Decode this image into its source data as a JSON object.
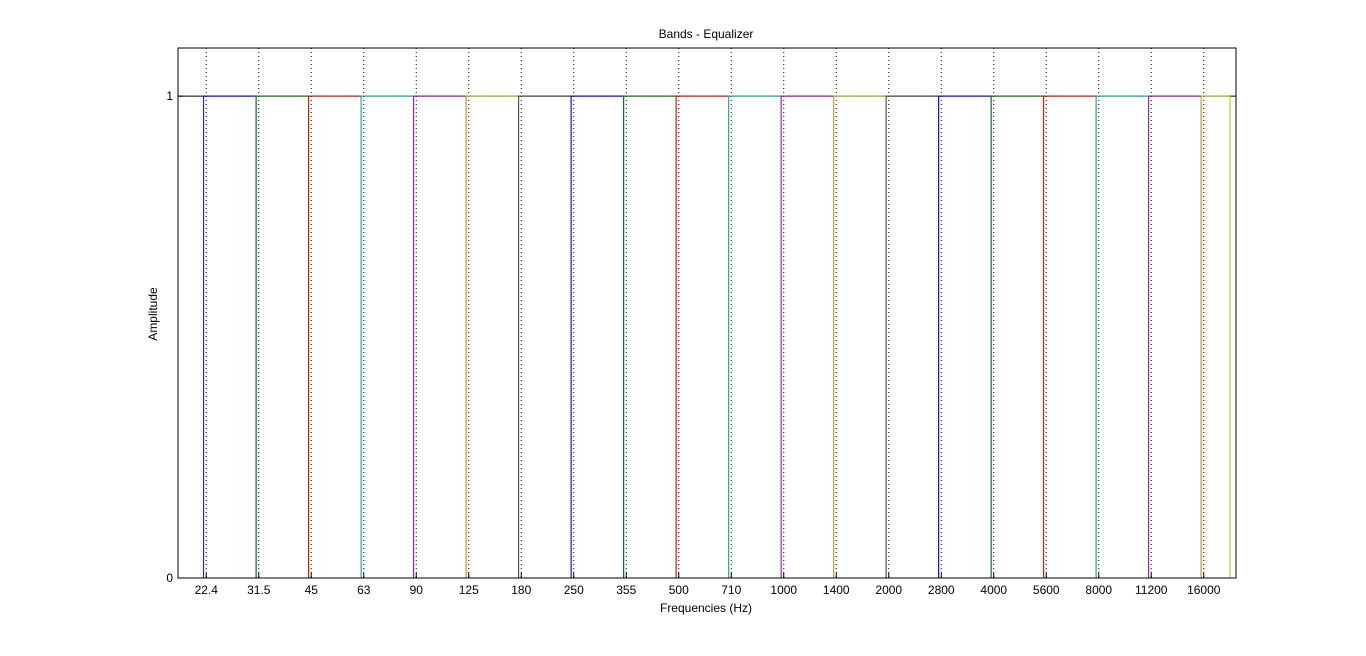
{
  "chart_data": {
    "type": "line",
    "title": "Bands - Equalizer",
    "xlabel": "Frequencies (Hz)",
    "ylabel": "Amplitude",
    "ylim": [
      0,
      1.1
    ],
    "yticks": [
      "0",
      "1"
    ],
    "categories": [
      "22.4",
      "31.5",
      "45",
      "63",
      "90",
      "125",
      "180",
      "250",
      "355",
      "500",
      "710",
      "1000",
      "1400",
      "2000",
      "2800",
      "4000",
      "5600",
      "8000",
      "11200",
      "16000"
    ],
    "grid": "vertical-dotted",
    "legend": "none",
    "band_colors": [
      "#0000ff",
      "#008000",
      "#ff0000",
      "#00bfbf",
      "#bf00bf",
      "#bfbf00",
      "#404040",
      "#0000ff",
      "#008000",
      "#ff0000",
      "#00bfbf",
      "#bf00bf",
      "#bfbf00",
      "#404040",
      "#0000ff",
      "#008000",
      "#ff0000",
      "#00bfbf",
      "#bf00bf",
      "#bfbf00"
    ],
    "series": [
      {
        "band": 1,
        "level": 1
      },
      {
        "band": 2,
        "level": 1
      },
      {
        "band": 3,
        "level": 1
      },
      {
        "band": 4,
        "level": 1
      },
      {
        "band": 5,
        "level": 1
      },
      {
        "band": 6,
        "level": 1
      },
      {
        "band": 7,
        "level": 1
      },
      {
        "band": 8,
        "level": 1
      },
      {
        "band": 9,
        "level": 1
      },
      {
        "band": 10,
        "level": 1
      },
      {
        "band": 11,
        "level": 1
      },
      {
        "band": 12,
        "level": 1
      },
      {
        "band": 13,
        "level": 1
      },
      {
        "band": 14,
        "level": 1
      },
      {
        "band": 15,
        "level": 1
      },
      {
        "band": 16,
        "level": 1
      },
      {
        "band": 17,
        "level": 1
      },
      {
        "band": 18,
        "level": 1
      },
      {
        "band": 19,
        "level": 1
      },
      {
        "band": 20,
        "level": 1
      }
    ]
  }
}
